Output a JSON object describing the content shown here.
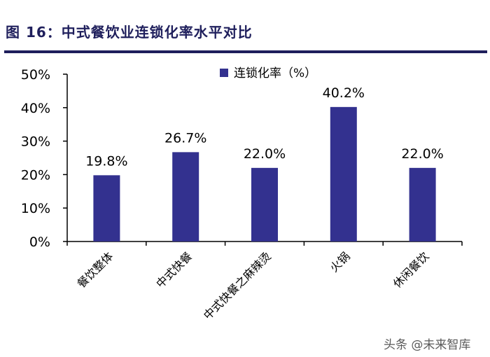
{
  "title": "图 16：中式餐饮业连锁化率水平对比",
  "watermark": "头条 @未来智库",
  "chart_data": {
    "type": "bar",
    "categories": [
      "餐饮整体",
      "中式快餐",
      "中式快餐之麻辣烫",
      "火锅",
      "休闲餐饮"
    ],
    "series": [
      {
        "name": "连锁化率（%）",
        "values": [
          19.8,
          26.7,
          22.0,
          40.2,
          22.0
        ]
      }
    ],
    "data_labels": [
      "19.8%",
      "26.7%",
      "22.0%",
      "40.2%",
      "22.0%"
    ],
    "yticks": [
      "0%",
      "10%",
      "20%",
      "30%",
      "40%",
      "50%"
    ],
    "ylim": [
      0,
      50
    ],
    "grid": false,
    "legend_position": "top-center",
    "colors": {
      "bar": "#33318f",
      "axis": "#000000",
      "text": "#000000"
    }
  }
}
